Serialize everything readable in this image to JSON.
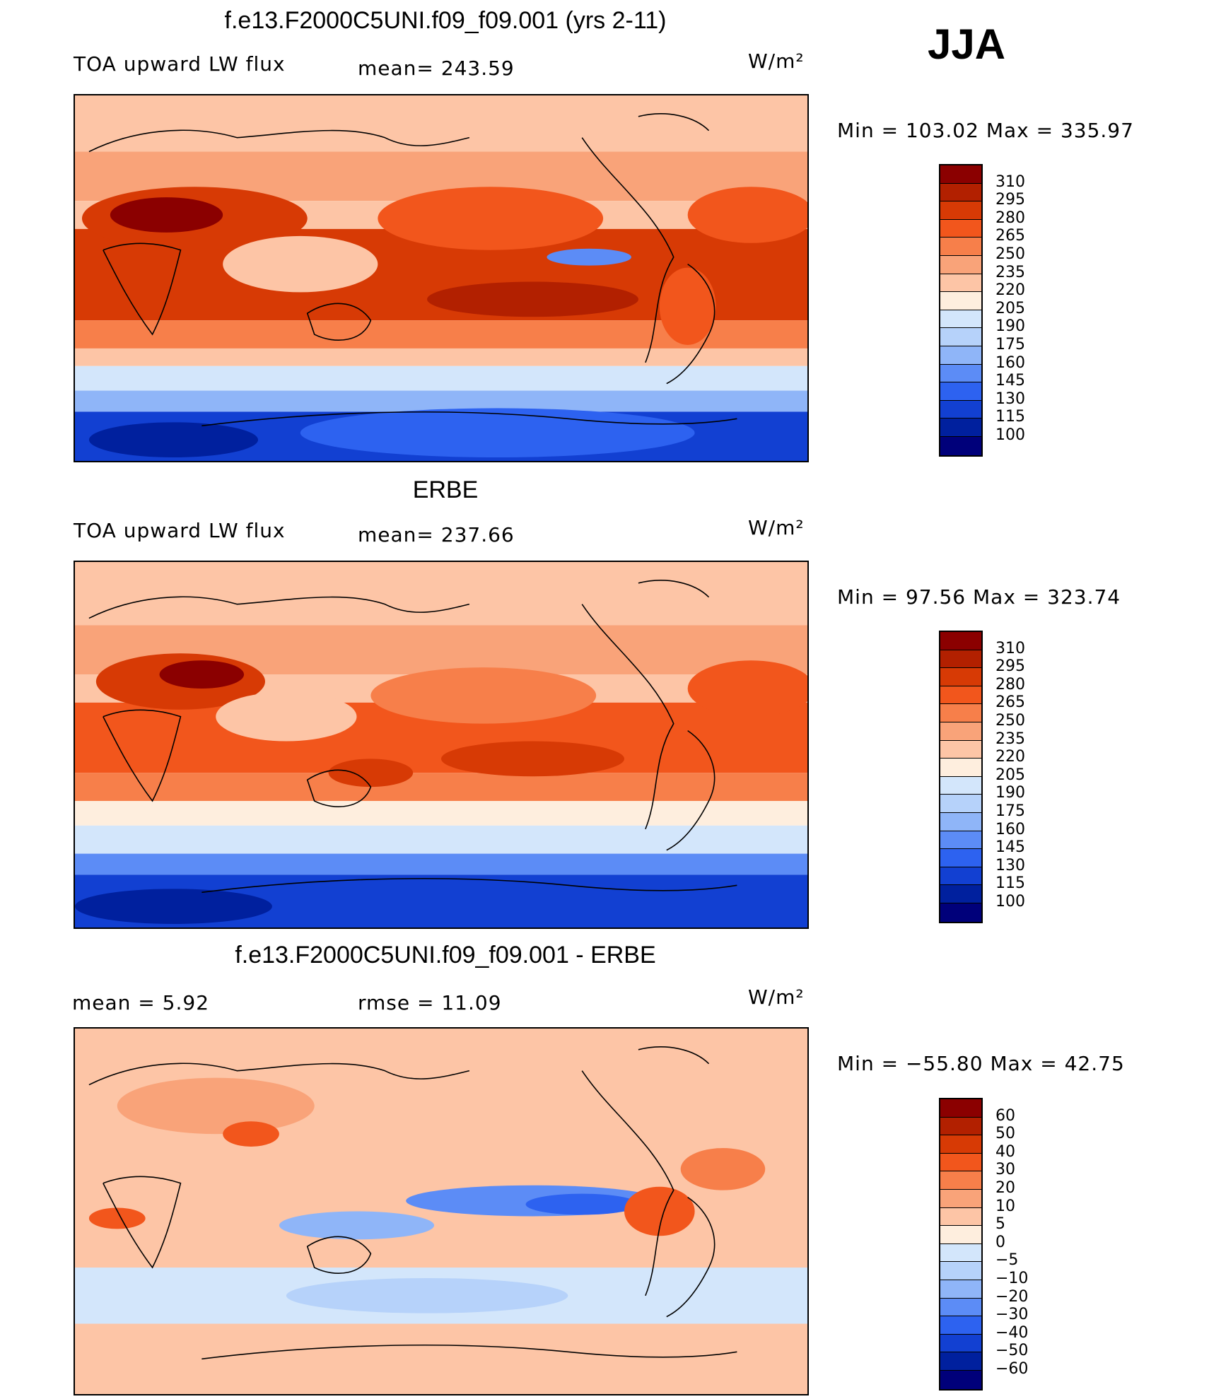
{
  "season": "JJA",
  "panels": [
    {
      "title": "f.e13.F2000C5UNI.f09_f09.001 (yrs 2-11)",
      "left_label": "TOA upward LW flux",
      "mid_label": "mean=  243.59",
      "units": "W/m²",
      "minmax": "Min  =  103.02  Max  =  335.97",
      "levels": [
        "310",
        "295",
        "280",
        "265",
        "250",
        "235",
        "220",
        "205",
        "190",
        "175",
        "160",
        "145",
        "130",
        "115",
        "100"
      ],
      "colors": [
        "#8b0000",
        "#b22000",
        "#d73a05",
        "#f2561c",
        "#f77f4a",
        "#f9a379",
        "#fdc5a6",
        "#feeede",
        "#d3e6fb",
        "#b6d2fa",
        "#8fb5f8",
        "#5c8cf6",
        "#2d62f0",
        "#1240d2",
        "#00209e",
        "#00007a"
      ],
      "map_variant": "model"
    },
    {
      "title": "ERBE",
      "left_label": "TOA upward LW flux",
      "mid_label": "mean=  237.66",
      "units": "W/m²",
      "minmax": "Min  =    97.56  Max  =  323.74",
      "levels": [
        "310",
        "295",
        "280",
        "265",
        "250",
        "235",
        "220",
        "205",
        "190",
        "175",
        "160",
        "145",
        "130",
        "115",
        "100"
      ],
      "colors": [
        "#8b0000",
        "#b22000",
        "#d73a05",
        "#f2561c",
        "#f77f4a",
        "#f9a379",
        "#fdc5a6",
        "#feeede",
        "#d3e6fb",
        "#b6d2fa",
        "#8fb5f8",
        "#5c8cf6",
        "#2d62f0",
        "#1240d2",
        "#00209e",
        "#00007a"
      ],
      "map_variant": "obs"
    },
    {
      "title": "f.e13.F2000C5UNI.f09_f09.001 - ERBE",
      "left_label": "mean  =      5.92",
      "mid_label": "rmse  =     11.09",
      "units": "W/m²",
      "minmax": "Min  =  −55.80  Max  =    42.75",
      "levels": [
        "60",
        "50",
        "40",
        "30",
        "20",
        "10",
        "5",
        "0",
        "−5",
        "−10",
        "−20",
        "−30",
        "−40",
        "−50",
        "−60"
      ],
      "colors": [
        "#8b0000",
        "#b22000",
        "#d73a05",
        "#f2561c",
        "#f77f4a",
        "#f9a379",
        "#fdc5a6",
        "#feeede",
        "#d3e6fb",
        "#b6d2fa",
        "#8fb5f8",
        "#5c8cf6",
        "#2d62f0",
        "#1240d2",
        "#00209e",
        "#00007a"
      ],
      "map_variant": "diff"
    }
  ]
}
